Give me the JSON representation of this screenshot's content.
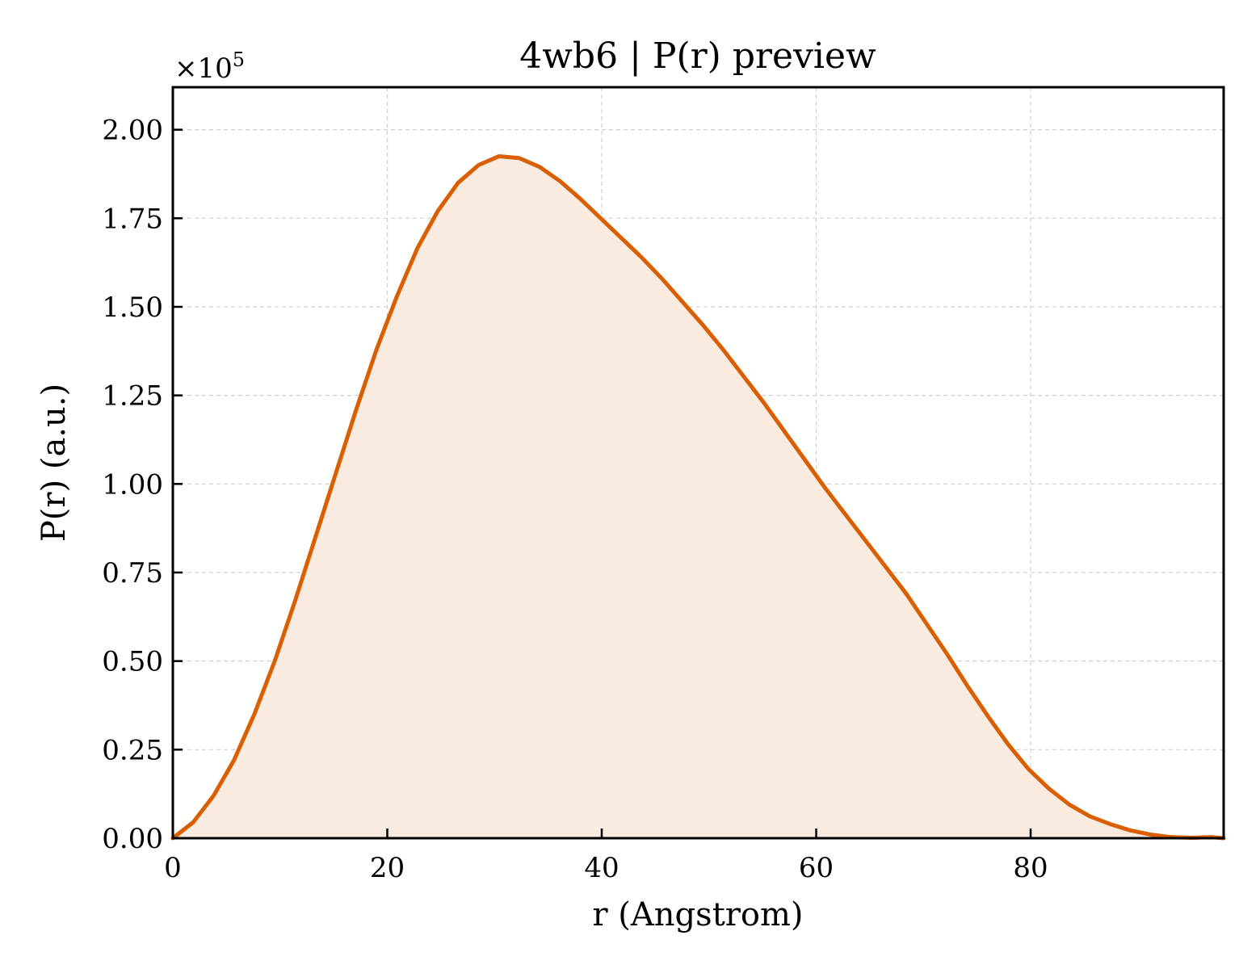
{
  "chart_data": {
    "type": "area",
    "title": "4wb6 | P(r) preview",
    "xlabel": "r (Angstrom)",
    "ylabel": "P(r) (a.u.)",
    "y_offset_label": "×10",
    "y_offset_exponent": "5",
    "xlim": [
      0,
      98
    ],
    "ylim": [
      0,
      2.12
    ],
    "y_scale_multiplier": 100000,
    "x_ticks": [
      0,
      20,
      40,
      60,
      80
    ],
    "x_tick_labels": [
      "0",
      "20",
      "40",
      "60",
      "80"
    ],
    "y_ticks": [
      0,
      0.25,
      0.5,
      0.75,
      1.0,
      1.25,
      1.5,
      1.75,
      2.0
    ],
    "y_tick_labels": [
      "0.00",
      "0.25",
      "0.50",
      "0.75",
      "1.00",
      "1.25",
      "1.50",
      "1.75",
      "2.00"
    ],
    "grid": true,
    "line_color": "#d95f02",
    "fill_color": "#f9ebe0",
    "series": [
      {
        "x": [
          0,
          1.9,
          3.8,
          5.7,
          7.6,
          9.5,
          11.4,
          13.3,
          15.2,
          17.1,
          19.0,
          20.9,
          22.8,
          24.7,
          26.6,
          28.5,
          30.4,
          32.3,
          34.2,
          36.1,
          38.0,
          39.9,
          41.8,
          43.7,
          45.6,
          47.5,
          49.4,
          51.3,
          53.2,
          55.1,
          57.0,
          58.9,
          60.8,
          62.7,
          64.6,
          66.5,
          68.4,
          70.3,
          72.2,
          74.1,
          76.0,
          77.9,
          79.8,
          81.7,
          83.6,
          85.5,
          87.4,
          89.3,
          91.2,
          93.1,
          95.0,
          96.9,
          98.0
        ],
        "y": [
          0.0,
          0.045,
          0.12,
          0.22,
          0.35,
          0.5,
          0.67,
          0.85,
          1.03,
          1.21,
          1.38,
          1.53,
          1.665,
          1.77,
          1.85,
          1.9,
          1.925,
          1.92,
          1.895,
          1.855,
          1.805,
          1.75,
          1.695,
          1.64,
          1.58,
          1.515,
          1.45,
          1.38,
          1.305,
          1.23,
          1.15,
          1.07,
          0.99,
          0.915,
          0.84,
          0.765,
          0.69,
          0.605,
          0.52,
          0.43,
          0.345,
          0.265,
          0.195,
          0.14,
          0.095,
          0.062,
          0.04,
          0.022,
          0.01,
          0.003,
          0.001,
          0.003,
          0.0
        ]
      }
    ]
  }
}
